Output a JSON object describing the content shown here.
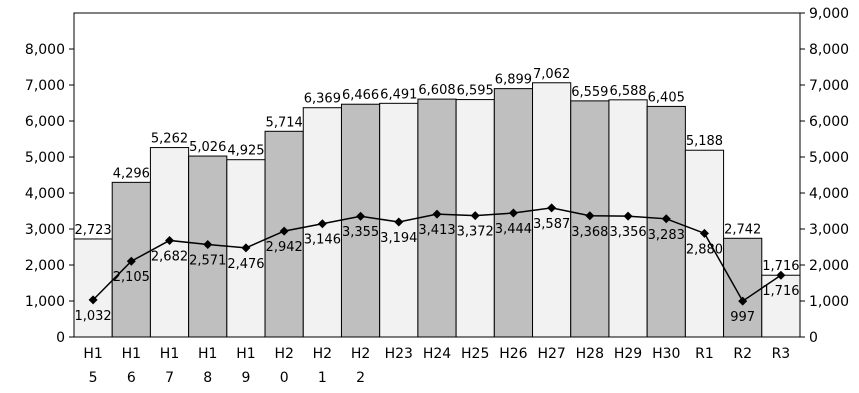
{
  "chart_data": {
    "type": "bar",
    "categories": [
      "H15",
      "H16",
      "H17",
      "H18",
      "H19",
      "H20",
      "H21",
      "H22",
      "H23",
      "H24",
      "H25",
      "H26",
      "H27",
      "H28",
      "H29",
      "H30",
      "R1",
      "R2",
      "R3"
    ],
    "category_lines": [
      [
        "H1",
        "5"
      ],
      [
        "H1",
        "6"
      ],
      [
        "H1",
        "7"
      ],
      [
        "H1",
        "8"
      ],
      [
        "H1",
        "9"
      ],
      [
        "H2",
        "0"
      ],
      [
        "H2",
        "1"
      ],
      [
        "H2",
        "2"
      ],
      [
        "H23"
      ],
      [
        "H24"
      ],
      [
        "H25"
      ],
      [
        "H26"
      ],
      [
        "H27"
      ],
      [
        "H28"
      ],
      [
        "H29"
      ],
      [
        "H30"
      ],
      [
        "R1"
      ],
      [
        "R2"
      ],
      [
        "R3"
      ]
    ],
    "series": [
      {
        "type": "bar",
        "axis": "left",
        "values": [
          2723,
          4296,
          5262,
          5026,
          4925,
          5714,
          6369,
          6466,
          6491,
          6608,
          6595,
          6899,
          7062,
          6559,
          6588,
          6405,
          5188,
          2742,
          1716
        ],
        "labels": [
          "2,723",
          "4,296",
          "5,262",
          "5,026",
          "4,925",
          "5,714",
          "6,369",
          "6,466",
          "6,491",
          "6,608",
          "6,595",
          "6,899",
          "7,062",
          "6,559",
          "6,588",
          "6,405",
          "5,188",
          "2,742",
          "1,716"
        ]
      },
      {
        "type": "line",
        "axis": "right",
        "values": [
          1032,
          2105,
          2682,
          2571,
          2476,
          2942,
          3146,
          3355,
          3194,
          3413,
          3372,
          3444,
          3587,
          3368,
          3356,
          3283,
          2880,
          997,
          1716
        ],
        "labels": [
          "1,032",
          "2,105",
          "2,682",
          "2,571",
          "2,476",
          "2,942",
          "3,146",
          "3,355",
          "3,194",
          "3,413",
          "3,372",
          "3,444",
          "3,587",
          "3,368",
          "3,356",
          "3,283",
          "2,880",
          "997",
          "1,716"
        ]
      }
    ],
    "bar_colors": [
      "#f2f2f2",
      "#bfbfbf"
    ],
    "line_color": "#000000",
    "marker": "diamond",
    "left_axis": {
      "ylim": [
        0,
        8000
      ],
      "ticks": [
        0,
        1000,
        2000,
        3000,
        4000,
        5000,
        6000,
        7000,
        8000
      ],
      "tick_labels": [
        "0",
        "1,000",
        "2,000",
        "3,000",
        "4,000",
        "5,000",
        "6,000",
        "7,000",
        "8,000"
      ]
    },
    "right_axis": {
      "ylim": [
        0,
        9000
      ],
      "ticks": [
        0,
        1000,
        2000,
        3000,
        4000,
        5000,
        6000,
        7000,
        8000,
        9000
      ],
      "tick_labels": [
        "0",
        "1,000",
        "2,000",
        "3,000",
        "4,000",
        "5,000",
        "6,000",
        "7,000",
        "8,000",
        "9,000"
      ]
    },
    "grid": false,
    "legend": "none"
  }
}
